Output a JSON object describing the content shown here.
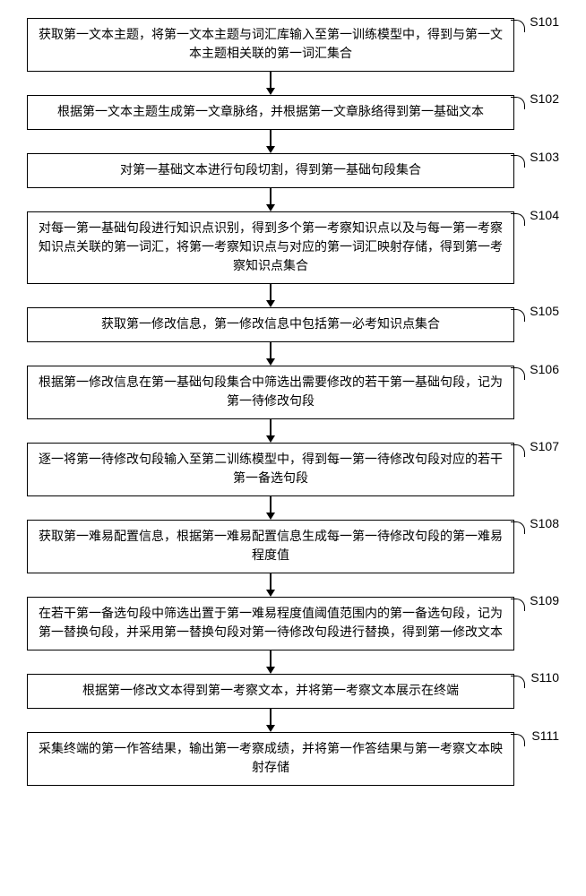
{
  "flowchart": {
    "type": "flowchart",
    "box_border_color": "#000000",
    "box_bg_color": "#ffffff",
    "text_color": "#000000",
    "font_size": 14,
    "arrow_color": "#000000",
    "arrow_gap": 18,
    "steps": [
      {
        "id": "S101",
        "text": "获取第一文本主题，将第一文本主题与词汇库输入至第一训练模型中，得到与第一文本主题相关联的第一词汇集合"
      },
      {
        "id": "S102",
        "text": "根据第一文本主题生成第一文章脉络，并根据第一文章脉络得到第一基础文本"
      },
      {
        "id": "S103",
        "text": "对第一基础文本进行句段切割，得到第一基础句段集合"
      },
      {
        "id": "S104",
        "text": "对每一第一基础句段进行知识点识别，得到多个第一考察知识点以及与每一第一考察知识点关联的第一词汇，将第一考察知识点与对应的第一词汇映射存储，得到第一考察知识点集合"
      },
      {
        "id": "S105",
        "text": "获取第一修改信息，第一修改信息中包括第一必考知识点集合"
      },
      {
        "id": "S106",
        "text": "根据第一修改信息在第一基础句段集合中筛选出需要修改的若干第一基础句段，记为第一待修改句段"
      },
      {
        "id": "S107",
        "text": "逐一将第一待修改句段输入至第二训练模型中，得到每一第一待修改句段对应的若干第一备选句段"
      },
      {
        "id": "S108",
        "text": "获取第一难易配置信息，根据第一难易配置信息生成每一第一待修改句段的第一难易程度值"
      },
      {
        "id": "S109",
        "text": "在若干第一备选句段中筛选出置于第一难易程度值阈值范围内的第一备选句段，记为第一替换句段，并采用第一替换句段对第一待修改句段进行替换，得到第一修改文本"
      },
      {
        "id": "S110",
        "text": "根据第一修改文本得到第一考察文本，并将第一考察文本展示在终端"
      },
      {
        "id": "S111",
        "text": "采集终端的第一作答结果，输出第一考察成绩，并将第一作答结果与第一考察文本映射存储"
      }
    ]
  }
}
